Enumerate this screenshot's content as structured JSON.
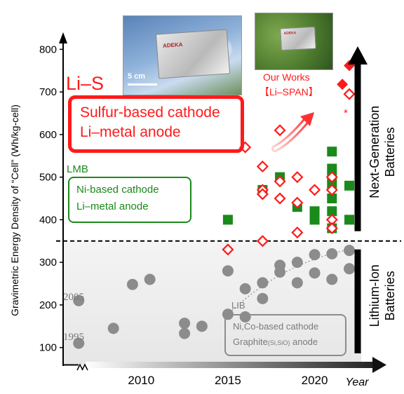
{
  "photos": {
    "sky": {
      "brand": "ADEKA",
      "scale_label": "5 cm"
    },
    "grass": {
      "brand": "ADEKA"
    }
  },
  "labels": {
    "lis_title": "Li–S",
    "lis_box_line1": "Sulfur-based cathode",
    "lis_box_line2": "Li–metal anode",
    "lmb_title": "LMB",
    "lmb_box_line1": "Ni-based cathode",
    "lmb_box_line2": "Li–metal anode",
    "lib_title": "LIB",
    "lib_box_line1": "Ni,Co-based cathode",
    "lib_box_line2_a": "Graphite",
    "lib_box_line2_sub": "(Si,SiO)",
    "lib_box_line2_b": " anode",
    "our_works_line1": "Our Works",
    "our_works_line2": "【Li–SPAN】",
    "asterisk": "*",
    "next_gen_line1": "Next-Generation",
    "next_gen_line2": "Batteries",
    "li_ion_line1": "Lithium-Ion",
    "li_ion_line2": "Batteries",
    "year_1995": "1995",
    "year_2005": "2005"
  },
  "colors": {
    "lis_red": "#ff1a1a",
    "lmb_green": "#1a8a1a",
    "lib_gray": "#8c8c8c",
    "axis": "#000000"
  },
  "chart_data": {
    "type": "scatter",
    "title": "",
    "xlabel": "Year",
    "ylabel": "Gravimetric Energy Density of “Cell” (Wh/kg-cell)",
    "x_ticks": [
      2010,
      2015,
      2020
    ],
    "y_ticks": [
      100,
      200,
      300,
      400,
      500,
      600,
      700,
      800
    ],
    "xlim": [
      2005.5,
      2023.9
    ],
    "ylim": [
      60,
      850
    ],
    "threshold_y": 350,
    "series": [
      {
        "name": "LIB",
        "marker": "circle",
        "color": "#8c8c8c",
        "points": [
          [
            2006.4,
            110
          ],
          [
            2006.4,
            210
          ],
          [
            2008.4,
            145
          ],
          [
            2009.5,
            248
          ],
          [
            2010.5,
            260
          ],
          [
            2012.5,
            157
          ],
          [
            2012.5,
            133
          ],
          [
            2013.5,
            150
          ],
          [
            2015.0,
            280
          ],
          [
            2015.0,
            178
          ],
          [
            2016.0,
            238
          ],
          [
            2016.0,
            172
          ],
          [
            2017.0,
            252
          ],
          [
            2017.0,
            215
          ],
          [
            2018.0,
            293
          ],
          [
            2018.0,
            277
          ],
          [
            2019.0,
            300
          ],
          [
            2019.0,
            252
          ],
          [
            2020.0,
            318
          ],
          [
            2020.0,
            275
          ],
          [
            2021.0,
            320
          ],
          [
            2021.0,
            260
          ],
          [
            2022.0,
            328
          ],
          [
            2022.0,
            285
          ]
        ]
      },
      {
        "name": "LMB",
        "marker": "square",
        "color": "#1a8a1a",
        "points": [
          [
            2015.0,
            400
          ],
          [
            2017.0,
            470
          ],
          [
            2018.0,
            500
          ],
          [
            2019.0,
            430
          ],
          [
            2020.0,
            420
          ],
          [
            2020.0,
            400
          ],
          [
            2021.0,
            560
          ],
          [
            2021.0,
            520
          ],
          [
            2021.0,
            500
          ],
          [
            2021.0,
            480
          ],
          [
            2021.0,
            450
          ],
          [
            2021.0,
            420
          ],
          [
            2021.0,
            380
          ],
          [
            2022.0,
            480
          ],
          [
            2022.0,
            400
          ]
        ]
      },
      {
        "name": "Li–S",
        "marker": "diamond-open",
        "color": "#ff1a1a",
        "points": [
          [
            2015.0,
            330
          ],
          [
            2016.0,
            570
          ],
          [
            2017.0,
            525
          ],
          [
            2017.0,
            470
          ],
          [
            2017.0,
            460
          ],
          [
            2017.0,
            350
          ],
          [
            2018.0,
            610
          ],
          [
            2018.0,
            490
          ],
          [
            2018.0,
            450
          ],
          [
            2019.0,
            500
          ],
          [
            2019.0,
            440
          ],
          [
            2019.0,
            370
          ],
          [
            2020.0,
            470
          ],
          [
            2021.0,
            500
          ],
          [
            2021.0,
            470
          ],
          [
            2021.0,
            400
          ],
          [
            2021.0,
            380
          ],
          [
            2022.0,
            695
          ]
        ]
      },
      {
        "name": "Our Works",
        "marker": "diamond-filled",
        "color": "#ff1a1a",
        "points": [
          [
            2021.6,
            718
          ],
          [
            2022.0,
            762
          ]
        ]
      }
    ]
  }
}
